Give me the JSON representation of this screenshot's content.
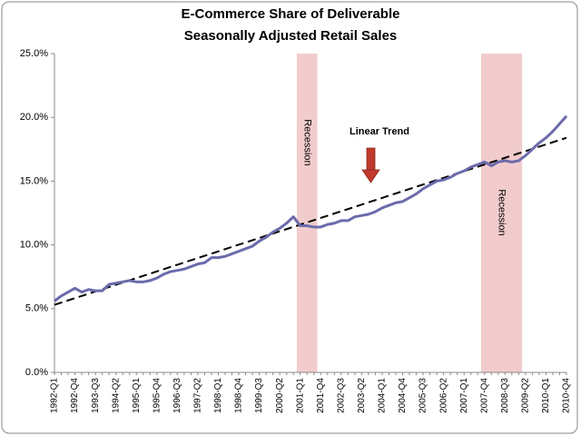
{
  "chart_data": {
    "type": "line",
    "title": [
      "E-Commerce  Share of Deliverable",
      "Seasonally Adjusted Retail Sales"
    ],
    "categories": [
      "1992-Q1",
      null,
      null,
      "1992-Q4",
      null,
      null,
      "1993-Q3",
      null,
      null,
      "1994-Q2",
      null,
      null,
      "1995-Q1",
      null,
      null,
      "1995-Q4",
      null,
      null,
      "1996-Q3",
      null,
      null,
      "1997-Q2",
      null,
      null,
      "1998-Q1",
      null,
      null,
      "1998-Q4",
      null,
      null,
      "1999-Q3",
      null,
      null,
      "2000-Q2",
      null,
      null,
      "2001-Q1",
      null,
      null,
      "2001-Q4",
      null,
      null,
      "2002-Q3",
      null,
      null,
      "2003-Q2",
      null,
      null,
      "2004-Q1",
      null,
      null,
      "2004-Q4",
      null,
      null,
      "2005-Q3",
      null,
      null,
      "2006-Q2",
      null,
      null,
      "2007-Q1",
      null,
      null,
      "2007-Q4",
      null,
      null,
      "2008-Q3",
      null,
      null,
      "2009-Q2",
      null,
      null,
      "2010-Q1",
      null,
      null,
      "2010-Q4"
    ],
    "series": [
      {
        "color": "#6b6bab",
        "values": [
          5.6,
          6.0,
          6.3,
          6.6,
          6.3,
          6.5,
          6.4,
          6.4,
          6.9,
          7.0,
          7.1,
          7.2,
          7.1,
          7.1,
          7.2,
          7.4,
          7.7,
          7.9,
          8.0,
          8.1,
          8.3,
          8.5,
          8.6,
          9.0,
          9.0,
          9.1,
          9.3,
          9.5,
          9.7,
          9.9,
          10.3,
          10.6,
          11.0,
          11.3,
          11.7,
          12.2,
          11.5,
          11.5,
          11.4,
          11.4,
          11.6,
          11.7,
          11.9,
          11.9,
          12.2,
          12.3,
          12.4,
          12.6,
          12.9,
          13.1,
          13.3,
          13.4,
          13.7,
          14.0,
          14.4,
          14.7,
          15.0,
          15.1,
          15.3,
          15.6,
          15.8,
          16.1,
          16.3,
          16.5,
          16.2,
          16.5,
          16.6,
          16.5,
          16.6,
          17.0,
          17.5,
          18.0,
          18.4,
          18.9,
          19.5,
          20.1
        ]
      }
    ],
    "trend_line": {
      "values": [
        5.3,
        18.4
      ],
      "color": "#000000"
    },
    "annotations": [
      {
        "text": "Linear Trend"
      }
    ],
    "recessions": [
      {
        "label": "Recession",
        "start": "2001-Q1",
        "end": "2001-Q4"
      },
      {
        "label": "Recession",
        "start": "2007-Q4",
        "end": "2009-Q2"
      }
    ],
    "recession_color": "#f2cccc",
    "ylim": [
      0,
      25
    ],
    "yticks": [
      {
        "value": 0,
        "label": "0.0%"
      },
      {
        "value": 5,
        "label": "5.0%"
      },
      {
        "value": 10,
        "label": "10.0%"
      },
      {
        "value": 15,
        "label": "15.0%"
      },
      {
        "value": 20,
        "label": "20.0%"
      },
      {
        "value": 25,
        "label": "25.0%"
      }
    ],
    "grid": false
  }
}
